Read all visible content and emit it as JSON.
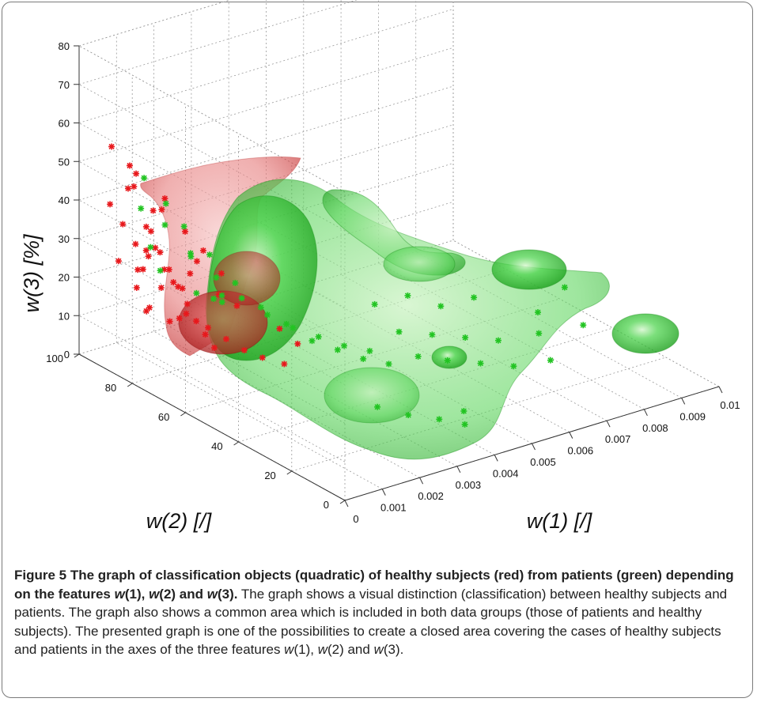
{
  "chart_data": {
    "type": "scatter3d",
    "subtype": "3d scatter with quadratic classification iso-surfaces",
    "xlabel": "w(1) [/]",
    "ylabel": "w(2) [/]",
    "zlabel": "w(3) [%]",
    "x_ticks": [
      "0",
      "0.001",
      "0.002",
      "0.003",
      "0.004",
      "0.005",
      "0.006",
      "0.007",
      "0.008",
      "0.009",
      "0.01"
    ],
    "y_ticks": [
      "0",
      "20",
      "40",
      "60",
      "80",
      "100"
    ],
    "z_ticks": [
      "0",
      "10",
      "20",
      "30",
      "40",
      "50",
      "60",
      "70",
      "80"
    ],
    "xlim": [
      0,
      0.01
    ],
    "ylim": [
      0,
      100
    ],
    "zlim": [
      0,
      80
    ],
    "grid": true,
    "colors": {
      "healthy": "#e8181c",
      "patients": "#22c422"
    },
    "series": [
      {
        "color": "#e8181c",
        "marker": "star",
        "points": [
          [
            0.0003,
            92,
            56
          ],
          [
            0.0005,
            88,
            52
          ],
          [
            0.0004,
            85,
            48
          ],
          [
            0.0006,
            90,
            45
          ],
          [
            0.0007,
            82,
            42
          ],
          [
            0.0005,
            80,
            38
          ],
          [
            0.0008,
            86,
            36
          ],
          [
            0.0006,
            78,
            33
          ],
          [
            0.0009,
            84,
            31
          ],
          [
            0.0007,
            76,
            29
          ],
          [
            0.001,
            88,
            27
          ],
          [
            0.0008,
            74,
            25
          ],
          [
            0.0011,
            80,
            23
          ],
          [
            0.0009,
            72,
            21
          ],
          [
            0.0012,
            86,
            19
          ],
          [
            0.001,
            70,
            17
          ],
          [
            0.0013,
            78,
            15
          ],
          [
            0.0011,
            68,
            14
          ],
          [
            0.0014,
            82,
            12
          ],
          [
            0.0012,
            66,
            11
          ],
          [
            0.0004,
            94,
            40
          ],
          [
            0.0006,
            92,
            35
          ],
          [
            0.0008,
            90,
            30
          ],
          [
            0.001,
            92,
            22
          ],
          [
            0.0005,
            83,
            27
          ],
          [
            0.0007,
            95,
            24
          ],
          [
            0.0009,
            91,
            18
          ],
          [
            0.0011,
            89,
            13
          ],
          [
            0.0013,
            93,
            10
          ],
          [
            0.0015,
            87,
            9
          ],
          [
            0.0016,
            74,
            12
          ],
          [
            0.0018,
            70,
            10
          ],
          [
            0.002,
            66,
            8
          ],
          [
            0.0022,
            62,
            7
          ],
          [
            0.0025,
            58,
            6
          ],
          [
            0.0006,
            87,
            50
          ],
          [
            0.0008,
            79,
            46
          ],
          [
            0.001,
            83,
            41
          ],
          [
            0.0012,
            77,
            37
          ],
          [
            0.0014,
            73,
            33
          ],
          [
            0.0016,
            69,
            28
          ],
          [
            0.0018,
            81,
            26
          ],
          [
            0.0003,
            79,
            34
          ],
          [
            0.0005,
            75,
            30
          ],
          [
            0.0007,
            71,
            26
          ],
          [
            0.0019,
            85,
            21
          ],
          [
            0.0021,
            77,
            18
          ],
          [
            0.0023,
            73,
            16
          ],
          [
            0.0028,
            64,
            12
          ],
          [
            0.003,
            60,
            9
          ]
        ]
      },
      {
        "color": "#22c422",
        "marker": "star",
        "points": [
          [
            0.0006,
            84,
            50
          ],
          [
            0.0009,
            80,
            44
          ],
          [
            0.0011,
            76,
            39
          ],
          [
            0.0013,
            86,
            35
          ],
          [
            0.0015,
            72,
            32
          ],
          [
            0.0017,
            82,
            28
          ],
          [
            0.0019,
            68,
            25
          ],
          [
            0.0021,
            78,
            22
          ],
          [
            0.0023,
            64,
            19
          ],
          [
            0.0025,
            74,
            17
          ],
          [
            0.0027,
            60,
            15
          ],
          [
            0.0029,
            70,
            13
          ],
          [
            0.0031,
            56,
            11
          ],
          [
            0.0033,
            66,
            10
          ],
          [
            0.0035,
            52,
            9
          ],
          [
            0.0037,
            62,
            8
          ],
          [
            0.0039,
            48,
            7
          ],
          [
            0.0041,
            58,
            6
          ],
          [
            0.0043,
            44,
            6
          ],
          [
            0.0045,
            54,
            5
          ],
          [
            0.0048,
            40,
            8
          ],
          [
            0.005,
            50,
            10
          ],
          [
            0.0053,
            36,
            7
          ],
          [
            0.0056,
            46,
            9
          ],
          [
            0.0059,
            32,
            6
          ],
          [
            0.0062,
            42,
            8
          ],
          [
            0.0065,
            28,
            5
          ],
          [
            0.0068,
            38,
            7
          ],
          [
            0.0072,
            24,
            6
          ],
          [
            0.0076,
            34,
            8
          ],
          [
            0.003,
            30,
            4
          ],
          [
            0.0034,
            24,
            3
          ],
          [
            0.0038,
            18,
            3
          ],
          [
            0.0042,
            14,
            2
          ],
          [
            0.0046,
            20,
            2
          ],
          [
            0.0008,
            88,
            40
          ],
          [
            0.001,
            72,
            33
          ],
          [
            0.0012,
            90,
            28
          ],
          [
            0.0014,
            66,
            24
          ],
          [
            0.0016,
            92,
            20
          ],
          [
            0.002,
            84,
            16
          ],
          [
            0.0024,
            80,
            14
          ],
          [
            0.0026,
            86,
            12
          ],
          [
            0.008,
            40,
            10
          ],
          [
            0.0085,
            30,
            9
          ],
          [
            0.009,
            44,
            12
          ],
          [
            0.0052,
            62,
            12
          ],
          [
            0.0058,
            58,
            14
          ],
          [
            0.0064,
            54,
            11
          ],
          [
            0.007,
            50,
            13
          ]
        ]
      }
    ]
  },
  "caption": {
    "figure_label": "Figure 5",
    "title_part1": " The graph of classification objects (quadratic) of healthy subjects (red) from patients (green) depending on the features ",
    "w1": "w",
    "w1n": "(1), ",
    "w2": "w",
    "w2n": "(2) and ",
    "w3": "w",
    "w3n": "(3).",
    "body_part1": " The graph shows a visual distinction (classification) between healthy subjects and patients. The graph also shows a common area which is included in both data groups (those of patients and healthy subjects). The presented graph is one of the possibilities to create a closed area covering the cases of healthy subjects and patients in the axes of the three features ",
    "bw1": "w",
    "bw1n": "(1), ",
    "bw2": "w",
    "bw2n": "(2) and ",
    "bw3": "w",
    "bw3n": "(3)."
  }
}
